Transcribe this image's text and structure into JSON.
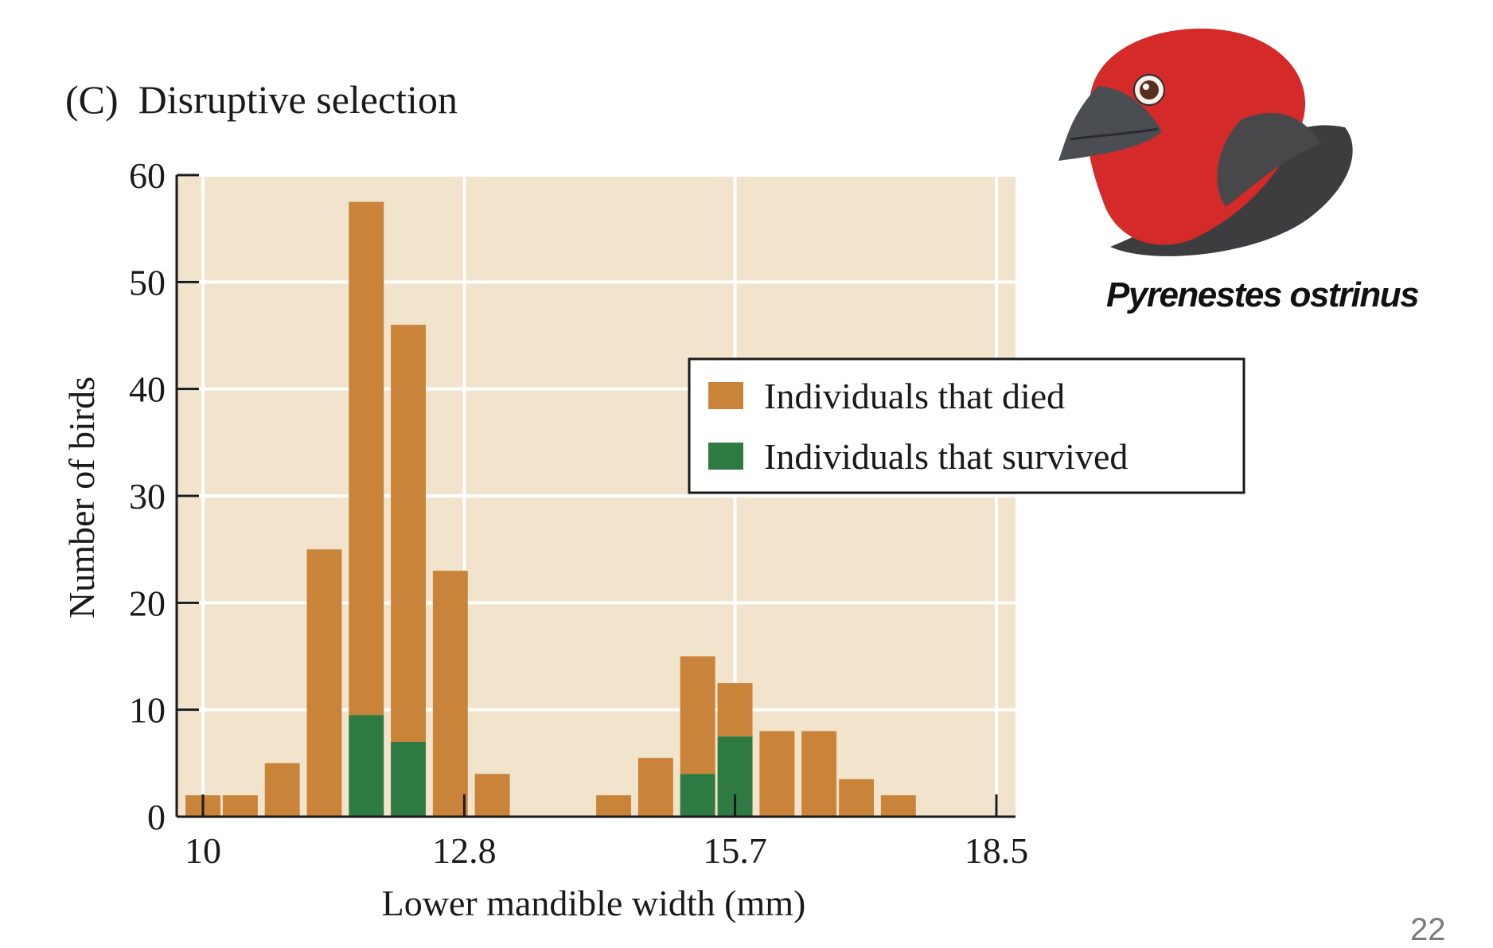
{
  "slide": {
    "title": "(C)  Disruptive selection",
    "bird_caption": "Pyrenestes ostrinus",
    "page_number": "22"
  },
  "colors": {
    "plot_background": "#f1e3cc",
    "died": "#c9843a",
    "survived": "#2f7a42",
    "gridline": "#ffffff",
    "axis": "#1a1a1a"
  },
  "chart_data": {
    "type": "bar",
    "stacked": true,
    "xlabel": "Lower mandible width (mm)",
    "ylabel": "Number of birds",
    "ylim": [
      0,
      60
    ],
    "yticks": [
      0,
      10,
      20,
      30,
      40,
      50,
      60
    ],
    "xlim": [
      10,
      18.5
    ],
    "xticks": [
      "10",
      "12.8",
      "15.7",
      "18.5"
    ],
    "grid": true,
    "legend_position": "right",
    "legend": [
      "Individuals that died",
      "Individuals that survived"
    ],
    "bin_width_mm": 0.4,
    "bin_starts": [
      9.8,
      10.2,
      10.65,
      11.1,
      11.55,
      12.0,
      12.45,
      12.9,
      14.2,
      14.65,
      15.1,
      15.5,
      15.95,
      16.4,
      16.8,
      17.25
    ],
    "series": [
      {
        "name": "Individuals that died",
        "values": [
          2,
          2,
          5,
          25,
          48,
          39,
          23,
          4,
          2,
          5.5,
          11,
          5,
          8,
          8,
          3.5,
          2
        ]
      },
      {
        "name": "Individuals that survived",
        "values": [
          0,
          0,
          0,
          0,
          9.5,
          7,
          0,
          0,
          0,
          0,
          4,
          7.5,
          0,
          0,
          0,
          0
        ]
      }
    ]
  }
}
